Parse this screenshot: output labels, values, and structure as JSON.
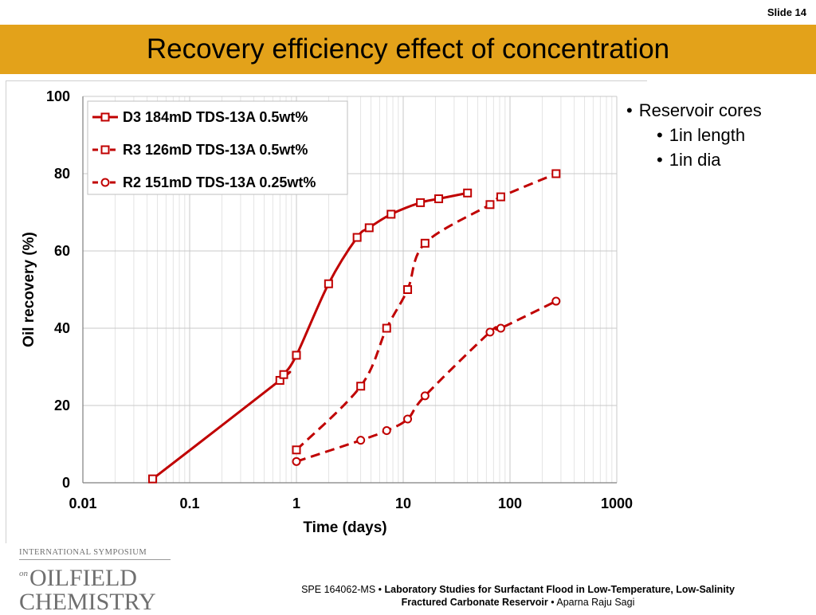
{
  "slide": {
    "number_label": "Slide 14",
    "title": "Recovery efficiency effect of concentration"
  },
  "bullets": {
    "main": "Reservoir cores",
    "sub": [
      "1in length",
      "1in dia"
    ]
  },
  "logo": {
    "top_line": "INTERNATIONAL SYMPOSIUM",
    "on": "on",
    "word1": "OILFIELD",
    "word2": "CHEMISTRY"
  },
  "footer": {
    "paper_id": "SPE 164062-MS",
    "sep1": " • ",
    "title_line1": "Laboratory Studies for Surfactant Flood in Low-Temperature, Low-Salinity",
    "title_line2": "Fractured Carbonate Reservoir",
    "sep2": " • ",
    "author": "Aparna Raju Sagi"
  },
  "colors": {
    "accent": "#e3a21a",
    "series": "#c00000",
    "grid": "#d9d9d9"
  },
  "chart_data": {
    "type": "scatter",
    "xlabel": "Time (days)",
    "ylabel": "Oil recovery (%)",
    "xscale": "log",
    "xlim": [
      0.01,
      1000
    ],
    "ylim": [
      0,
      100
    ],
    "x_ticks": [
      0.01,
      0.1,
      1,
      10,
      100,
      1000
    ],
    "x_tick_labels": [
      "0.01",
      "0.1",
      "1",
      "10",
      "100",
      "1000"
    ],
    "y_ticks": [
      0,
      20,
      40,
      60,
      80,
      100
    ],
    "y_tick_labels": [
      "0",
      "20",
      "40",
      "60",
      "80",
      "100"
    ],
    "grid": true,
    "legend_position": "top-left",
    "series": [
      {
        "name": "D3 184mD TDS-13A  0.5wt%",
        "marker": "square",
        "line": "solid",
        "smooth": true,
        "x": [
          0.045,
          0.7,
          0.76,
          1.0,
          2.0,
          3.7,
          4.8,
          7.7,
          14.5,
          21.5,
          40
        ],
        "y": [
          1,
          26.5,
          28,
          33,
          51.5,
          63.5,
          66,
          69.5,
          72.5,
          73.5,
          75
        ]
      },
      {
        "name": "R3 126mD TDS-13A 0.5wt%",
        "marker": "square",
        "line": "dashed",
        "smooth": true,
        "x": [
          1.0,
          4.0,
          7.0,
          11.0,
          16.0,
          65,
          82,
          270
        ],
        "y": [
          8.5,
          25,
          40,
          50,
          62,
          72,
          74,
          80
        ]
      },
      {
        "name": "R2 151mD TDS-13A 0.25wt%",
        "marker": "circle",
        "line": "dashed",
        "smooth": true,
        "x": [
          1.0,
          4.0,
          7.0,
          11.0,
          16.0,
          65,
          82,
          270
        ],
        "y": [
          5.5,
          11,
          13.5,
          16.5,
          22.5,
          39,
          40,
          47
        ]
      }
    ]
  }
}
